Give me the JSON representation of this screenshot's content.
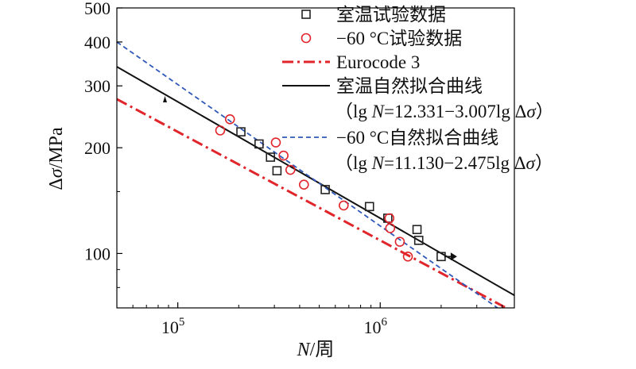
{
  "chart_data": {
    "type": "scatter",
    "x_scale": "log",
    "y_scale": "log",
    "xlim": [
      50000,
      4600000
    ],
    "ylim": [
      70,
      500
    ],
    "xlabel": "N/周",
    "ylabel": "Δσ/MPa",
    "y_ticks": [
      {
        "value": 100,
        "label": "100"
      },
      {
        "value": 200,
        "label": "200"
      },
      {
        "value": 300,
        "label": "300"
      },
      {
        "value": 400,
        "label": "400"
      },
      {
        "value": 500,
        "label": "500"
      }
    ],
    "x_ticks": [
      {
        "value": 100000,
        "base": "10",
        "exp": "5"
      },
      {
        "value": 1000000,
        "base": "10",
        "exp": "6"
      }
    ],
    "legend_position": "top-right",
    "series": [
      {
        "name": "室温试验数据",
        "kind": "points",
        "marker": "square",
        "color": "#222222",
        "points": [
          {
            "x": 205000,
            "y": 222
          },
          {
            "x": 252000,
            "y": 205
          },
          {
            "x": 287000,
            "y": 188
          },
          {
            "x": 309000,
            "y": 172
          },
          {
            "x": 535000,
            "y": 152
          },
          {
            "x": 885000,
            "y": 136
          },
          {
            "x": 1090000,
            "y": 126
          },
          {
            "x": 1520000,
            "y": 117
          },
          {
            "x": 1550000,
            "y": 109
          },
          {
            "x": 2000000,
            "y": 98
          }
        ],
        "runout": {
          "x": 2000000,
          "y": 98
        }
      },
      {
        "name": "−60 °C试验数据",
        "kind": "points",
        "marker": "circle",
        "color": "#e0252b",
        "points": [
          {
            "x": 162000,
            "y": 224
          },
          {
            "x": 181000,
            "y": 241
          },
          {
            "x": 305000,
            "y": 207
          },
          {
            "x": 333000,
            "y": 190
          },
          {
            "x": 360000,
            "y": 173
          },
          {
            "x": 420000,
            "y": 157
          },
          {
            "x": 660000,
            "y": 137
          },
          {
            "x": 1110000,
            "y": 126
          },
          {
            "x": 1120000,
            "y": 118
          },
          {
            "x": 1250000,
            "y": 108
          },
          {
            "x": 1370000,
            "y": 98
          }
        ]
      },
      {
        "name": "Eurocode 3",
        "kind": "line",
        "style": "dashdot",
        "color": "#e0252b",
        "points": [
          {
            "x": 50000,
            "y": 275
          },
          {
            "x": 4600000,
            "y": 68
          }
        ]
      },
      {
        "name": "室温自然拟合曲线",
        "equation": "（lg N=12.331−3.007lg Δσ）",
        "kind": "line",
        "style": "solid",
        "color": "#111111",
        "points": [
          {
            "x": 50000,
            "y": 340
          },
          {
            "x": 4600000,
            "y": 76
          }
        ]
      },
      {
        "name": "−60 °C自然拟合曲线",
        "equation": "（lg N=11.130−2.475lg Δσ）",
        "kind": "line",
        "style": "dashed",
        "color": "#2f58b8",
        "points": [
          {
            "x": 50000,
            "y": 400
          },
          {
            "x": 4600000,
            "y": 64.8
          }
        ]
      }
    ]
  }
}
